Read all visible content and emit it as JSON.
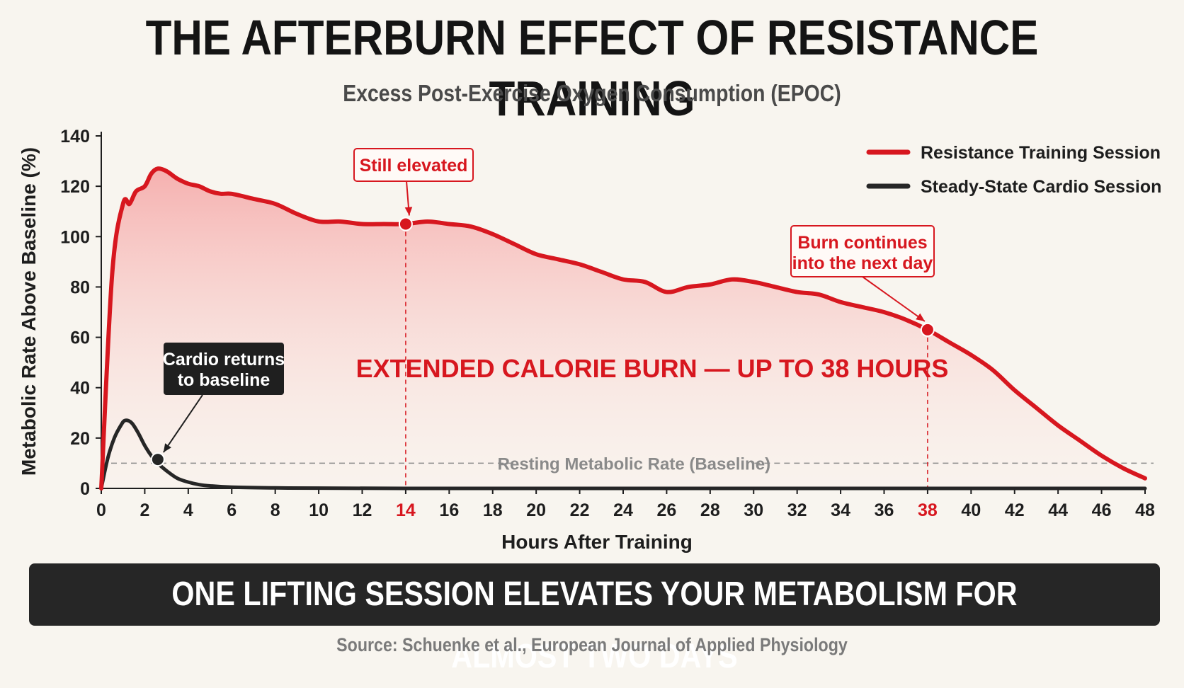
{
  "title": "THE AFTERBURN EFFECT OF RESISTANCE TRAINING",
  "subtitle": "Excess Post-Exercise Oxygen Consumption (EPOC)",
  "banner": "ONE LIFTING SESSION ELEVATES YOUR METABOLISM FOR ALMOST TWO DAYS",
  "source": "Source: Schuenke et al., European Journal of Applied Physiology",
  "colors": {
    "resistance": "#d7171f",
    "cardio": "#262626",
    "fill_top": "#f5a4a4",
    "annotation_box": "#d7171f"
  },
  "chart_data": {
    "type": "line",
    "xlabel": "Hours After Training",
    "ylabel": "Metabolic Rate Above Baseline (%)",
    "xlim": [
      0,
      48
    ],
    "ylim": [
      0,
      140
    ],
    "xticks": [
      "0",
      "2",
      "4",
      "6",
      "8",
      "10",
      "12",
      "14",
      "16",
      "18",
      "20",
      "22",
      "24",
      "26",
      "28",
      "30",
      "32",
      "34",
      "36",
      "38",
      "40",
      "42",
      "44",
      "46",
      "48"
    ],
    "highlight_xticks": [
      "14",
      "38"
    ],
    "yticks": [
      "0",
      "20",
      "40",
      "60",
      "80",
      "100",
      "120",
      "140"
    ],
    "baseline": {
      "y": 10,
      "label": "Resting Metabolic Rate (Baseline)"
    },
    "series": [
      {
        "name": "Resistance Training Session",
        "color": "#d7171f",
        "x": [
          0,
          0.5,
          1,
          1.3,
          1.6,
          2,
          2.3,
          2.6,
          3,
          3.5,
          4,
          4.5,
          5,
          5.5,
          6,
          7,
          8,
          9,
          10,
          11,
          12,
          13,
          14,
          15,
          16,
          17,
          18,
          19,
          20,
          21,
          22,
          23,
          24,
          25,
          26,
          27,
          28,
          29,
          30,
          31,
          32,
          33,
          34,
          35,
          36,
          37,
          38,
          39,
          40,
          41,
          42,
          43,
          44,
          45,
          46,
          47,
          48
        ],
        "y": [
          0,
          85,
          113,
          113,
          118,
          120,
          125,
          127,
          126,
          123,
          121,
          120,
          118,
          117,
          117,
          115,
          113,
          109,
          106,
          106,
          105,
          105,
          105,
          106,
          105,
          104,
          101,
          97,
          93,
          91,
          89,
          86,
          83,
          82,
          78,
          80,
          81,
          83,
          82,
          80,
          78,
          77,
          74,
          72,
          70,
          67,
          63,
          58,
          53,
          47,
          39,
          32,
          25,
          19,
          13,
          8,
          4
        ]
      },
      {
        "name": "Steady-State Cardio Session",
        "color": "#262626",
        "x": [
          0,
          0.3,
          0.6,
          0.9,
          1.1,
          1.4,
          1.7,
          2,
          2.3,
          2.6,
          3,
          3.5,
          4,
          4.5,
          5,
          6,
          8,
          10,
          14,
          20,
          30,
          40,
          48
        ],
        "y": [
          0,
          12,
          20,
          25,
          27,
          26,
          22,
          17,
          13,
          10,
          7,
          4,
          2.5,
          1.5,
          1,
          0.5,
          0.2,
          0.1,
          0,
          0,
          0,
          0,
          0
        ]
      }
    ],
    "annotations": [
      {
        "label": "Still elevated",
        "x": 14,
        "y": 105,
        "style": "red"
      },
      {
        "label": "Burn continues into the next day",
        "lines": [
          "Burn continues",
          "into the next day"
        ],
        "x": 38,
        "y": 63,
        "style": "red"
      },
      {
        "label": "Cardio returns to baseline",
        "lines": [
          "Cardio returns",
          "to baseline"
        ],
        "x": 2.6,
        "y": 11.5,
        "style": "dark"
      }
    ],
    "center_label": "EXTENDED CALORIE BURN — UP TO 38 HOURS",
    "legend_position": "top-right",
    "grid": false
  }
}
